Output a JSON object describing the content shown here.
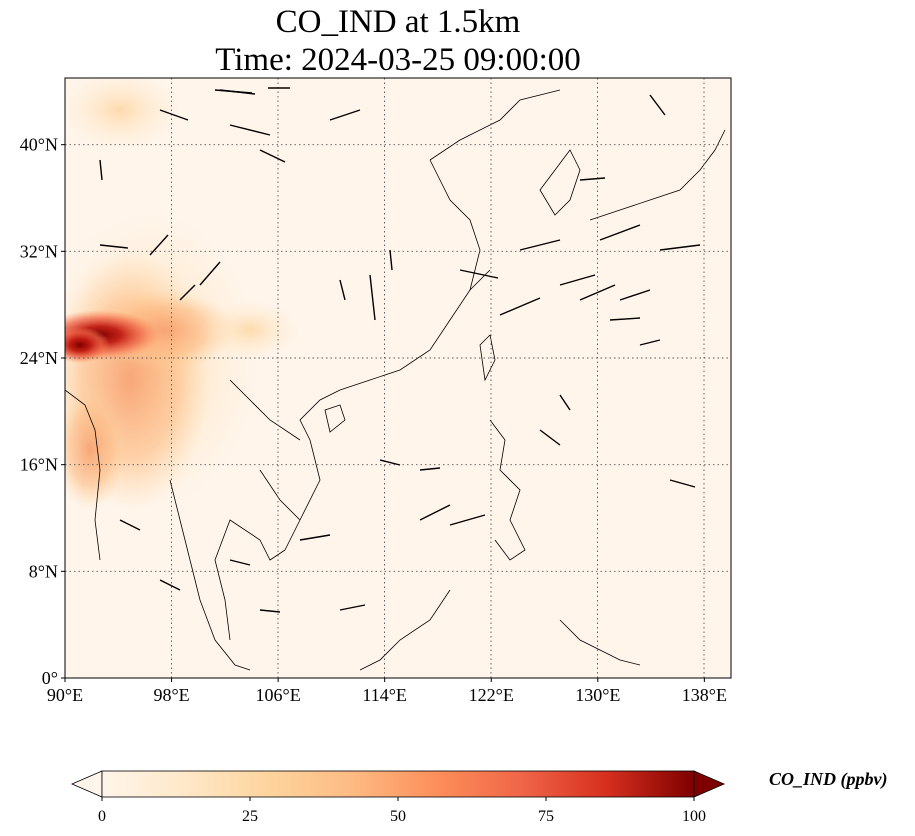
{
  "title_line1": "CO_IND at 1.5km",
  "title_line2": "Time: 2024-03-25 09:00:00",
  "map": {
    "projection": "PlateCarree",
    "lon_range": [
      90,
      140
    ],
    "lat_range": [
      0,
      45
    ],
    "lon_ticks": [
      "90°E",
      "98°E",
      "106°E",
      "114°E",
      "122°E",
      "130°E",
      "138°E"
    ],
    "lon_tick_values": [
      90,
      98,
      106,
      114,
      122,
      130,
      138
    ],
    "lat_ticks": [
      "0°",
      "8°N",
      "16°N",
      "24°N",
      "32°N",
      "40°N"
    ],
    "lat_tick_values": [
      0,
      8,
      16,
      24,
      32,
      40
    ],
    "gridlines": true,
    "background_color": "#fff5eb",
    "coastline_color": "#000000"
  },
  "colorbar": {
    "label": "CO_IND (ppbv)",
    "ticks": [
      "0",
      "25",
      "50",
      "75",
      "100"
    ],
    "min": 0,
    "max": 100,
    "colors": [
      "#fff5eb",
      "#fdd49e",
      "#fdbb84",
      "#fc8d59",
      "#ef6548",
      "#d7301f",
      "#b30000",
      "#7f0000"
    ],
    "extend": "both"
  }
}
